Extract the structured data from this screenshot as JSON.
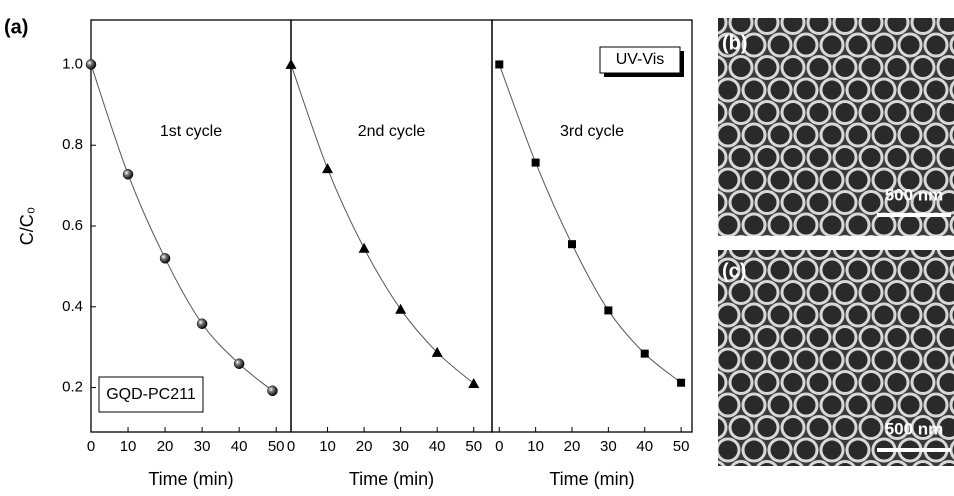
{
  "figure_label": "(a)",
  "chart_data": [
    {
      "type": "line",
      "marker": "sphere",
      "color": "#000000",
      "line_color": "#555555",
      "annotation": "1st cycle",
      "sample_label": "GQD-PC211",
      "ylabel": "C/C₀",
      "xlabel": "Time (min)",
      "x": [
        0,
        10,
        20,
        30,
        40,
        49
      ],
      "values": [
        1.0,
        0.728,
        0.52,
        0.358,
        0.259,
        0.192
      ],
      "xlim": [
        0,
        54
      ],
      "ylim": [
        0.09,
        1.11
      ],
      "xticks": [
        0,
        10,
        20,
        30,
        40,
        50
      ],
      "yticks": [
        0.2,
        0.4,
        0.6,
        0.8,
        {
          "value": 1,
          "label": "1.0"
        }
      ]
    },
    {
      "type": "line",
      "marker": "triangle",
      "color": "#000000",
      "line_color": "#555555",
      "annotation": "2nd cycle",
      "xlabel": "Time (min)",
      "x": [
        0,
        10,
        20,
        30,
        40,
        50
      ],
      "values": [
        1.0,
        0.742,
        0.545,
        0.394,
        0.287,
        0.21
      ],
      "xlim": [
        0,
        55
      ],
      "ylim": [
        0.09,
        1.11
      ],
      "xticks": [
        0,
        10,
        20,
        30,
        40,
        50
      ]
    },
    {
      "type": "line",
      "marker": "square",
      "color": "#000000",
      "line_color": "#555555",
      "annotation": "3rd cycle",
      "method_label": "UV-Vis",
      "xlabel": "Time (min)",
      "x": [
        0,
        10,
        20,
        30,
        40,
        50
      ],
      "values": [
        1.0,
        0.757,
        0.555,
        0.391,
        0.284,
        0.212
      ],
      "xlim": [
        -2,
        53
      ],
      "ylim": [
        0.09,
        1.11
      ],
      "xticks": [
        0,
        10,
        20,
        30,
        40,
        50
      ]
    }
  ],
  "images": [
    {
      "label": "(b)",
      "scale_bar": "500 nm"
    },
    {
      "label": "(c)",
      "scale_bar": "500 nm"
    }
  ]
}
